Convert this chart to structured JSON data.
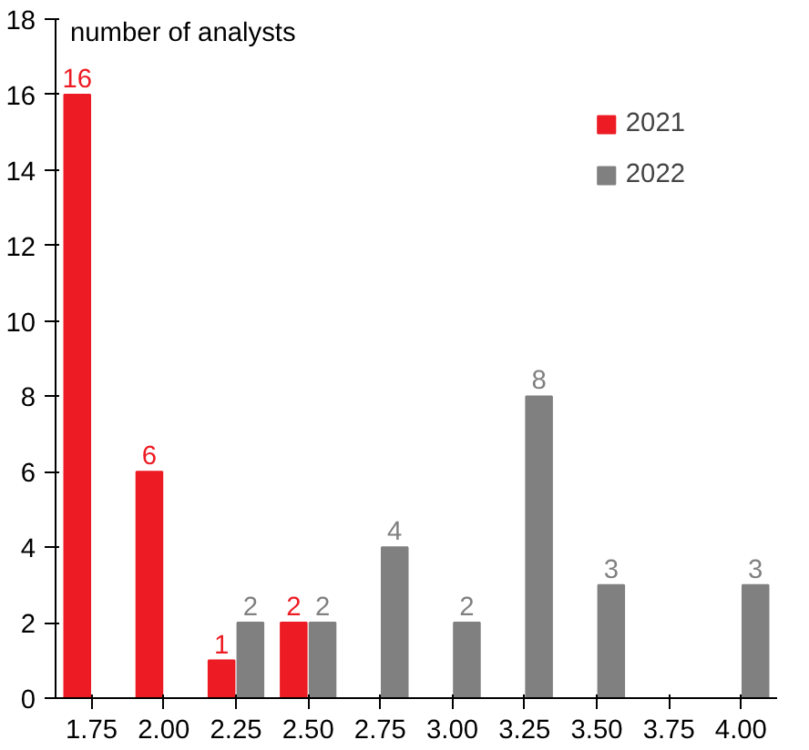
{
  "chart_data": {
    "type": "bar",
    "ylabel": "number of analysts",
    "categories": [
      "1.75",
      "2.00",
      "2.25",
      "2.50",
      "2.75",
      "3.00",
      "3.25",
      "3.50",
      "3.75",
      "4.00"
    ],
    "series": [
      {
        "name": "2021",
        "color": "#ed1c24",
        "values": [
          16,
          6,
          1,
          2,
          null,
          null,
          null,
          null,
          null,
          null
        ]
      },
      {
        "name": "2022",
        "color": "#808080",
        "values": [
          null,
          null,
          2,
          2,
          4,
          2,
          8,
          3,
          null,
          3
        ]
      }
    ],
    "ylim": [
      0,
      18
    ],
    "yticks": [
      0,
      2,
      4,
      6,
      8,
      10,
      12,
      14,
      16,
      18
    ],
    "data_labels": true,
    "legend": "top right",
    "grid": false
  }
}
